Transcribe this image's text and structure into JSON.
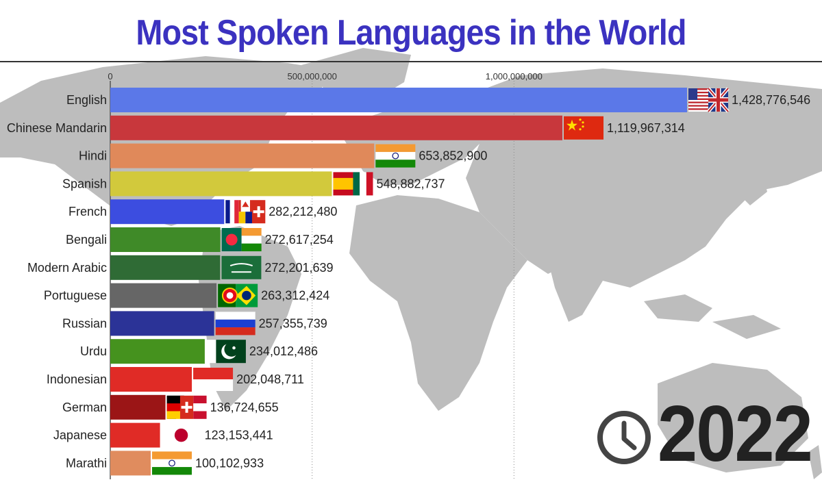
{
  "title": "Most Spoken Languages in the World",
  "year": "2022",
  "chart_data": {
    "type": "bar",
    "orientation": "horizontal",
    "title": "Most Spoken Languages in the World",
    "xlim": [
      0,
      1430000000
    ],
    "x_ticks": [
      0,
      500000000,
      1000000000
    ],
    "x_tick_labels": [
      "0",
      "500,000,000",
      "1,000,000,000"
    ],
    "grid": true,
    "categories": [
      "English",
      "Chinese Mandarin",
      "Hindi",
      "Spanish",
      "French",
      "Bengali",
      "Modern Arabic",
      "Portuguese",
      "Russian",
      "Urdu",
      "Indonesian",
      "German",
      "Japanese",
      "Marathi"
    ],
    "values": [
      1428776546,
      1119967314,
      653852900,
      548882737,
      282212480,
      272617254,
      272201639,
      263312424,
      257355739,
      234012486,
      202048711,
      136724655,
      123153441,
      100102933
    ],
    "value_labels": [
      "1,428,776,546",
      "1,119,967,314",
      "653,852,900",
      "548,882,737",
      "282,212,480",
      "272,617,254",
      "272,201,639",
      "263,312,424",
      "257,355,739",
      "234,012,486",
      "202,048,711",
      "136,724,655",
      "123,153,441",
      "100,102,933"
    ],
    "colors": [
      "#5b78e8",
      "#c8373c",
      "#e0895a",
      "#d2c93c",
      "#3c4de0",
      "#3f8a28",
      "#2f6b35",
      "#666666",
      "#2b3397",
      "#45921e",
      "#e02b26",
      "#9b1516",
      "#e02b26",
      "#e08c5e"
    ],
    "flags": [
      "usa-uk-flag",
      "china-flag",
      "india-flag",
      "spain-mexico-flag",
      "france-canada-switzerland-flag",
      "bangladesh-india-flag",
      "saudi-arabia-flag",
      "portugal-brazil-flag",
      "russia-flag",
      "pakistan-flag",
      "indonesia-flag",
      "germany-switzerland-austria-flag",
      "japan-flag",
      "india-flag"
    ]
  },
  "icons": {
    "clock": "clock-icon",
    "background": "world-map"
  }
}
